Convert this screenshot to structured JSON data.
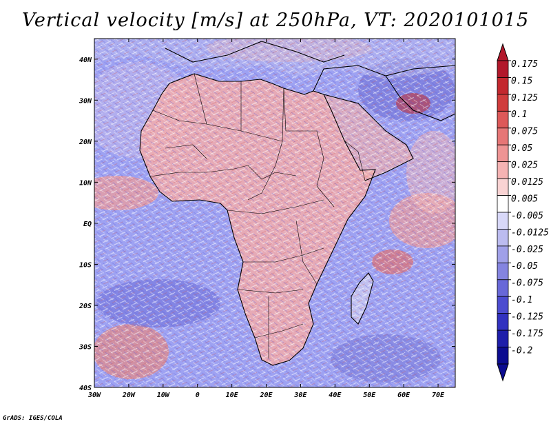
{
  "title": "Vertical velocity [m/s] at 250hPa, VT: 2020101015",
  "credit": "GrADS: IGES/COLA",
  "map": {
    "lon_range": [
      -30,
      75
    ],
    "lat_range": [
      -40,
      45
    ],
    "lat_ticks": [
      {
        "value": 40,
        "label": "40N"
      },
      {
        "value": 30,
        "label": "30N"
      },
      {
        "value": 20,
        "label": "20N"
      },
      {
        "value": 10,
        "label": "10N"
      },
      {
        "value": 0,
        "label": "EQ"
      },
      {
        "value": -10,
        "label": "10S"
      },
      {
        "value": -20,
        "label": "20S"
      },
      {
        "value": -30,
        "label": "30S"
      },
      {
        "value": -40,
        "label": "40S"
      }
    ],
    "lon_ticks": [
      {
        "value": -30,
        "label": "30W"
      },
      {
        "value": -20,
        "label": "20W"
      },
      {
        "value": -10,
        "label": "10W"
      },
      {
        "value": 0,
        "label": "0"
      },
      {
        "value": 10,
        "label": "10E"
      },
      {
        "value": 20,
        "label": "20E"
      },
      {
        "value": 30,
        "label": "30E"
      },
      {
        "value": 40,
        "label": "40E"
      },
      {
        "value": 50,
        "label": "50E"
      },
      {
        "value": 60,
        "label": "60E"
      },
      {
        "value": 70,
        "label": "70E"
      }
    ]
  },
  "colorbar": {
    "labels": [
      "0.175",
      "0.15",
      "0.125",
      "0.1",
      "0.075",
      "0.05",
      "0.025",
      "0.0125",
      "0.005",
      "-0.005",
      "-0.0125",
      "-0.025",
      "-0.05",
      "-0.075",
      "-0.1",
      "-0.125",
      "-0.175",
      "-0.2"
    ],
    "colors": [
      "#b2182b",
      "#c3282e",
      "#d03c3c",
      "#dd5858",
      "#e67676",
      "#ee9494",
      "#f5b3b3",
      "#f9d3d3",
      "#ffffff",
      "#d8d8f8",
      "#bcbcf0",
      "#a0a0e8",
      "#8484e0",
      "#6868d8",
      "#4c4cd0",
      "#3232c0",
      "#1e1eaa",
      "#0c0c90"
    ],
    "top_color": "#b2182b",
    "bottom_color": "#0c0c90"
  },
  "colors": {
    "ocean_blue": "#8f93f0",
    "land_red": "#f2a9a9",
    "border": "#000000"
  }
}
